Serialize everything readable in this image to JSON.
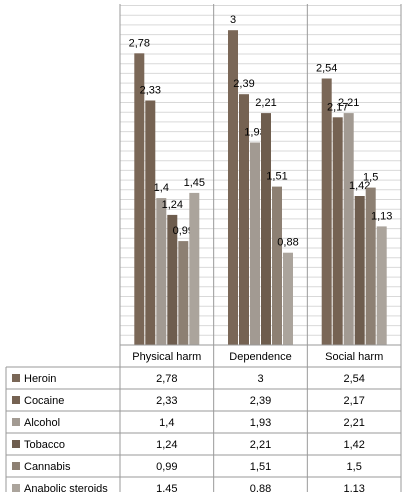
{
  "chart_data": {
    "type": "bar",
    "categories": [
      "Physical harm",
      "Dependence",
      "Social harm"
    ],
    "series": [
      {
        "name": "Heroin",
        "values": [
          2.78,
          3,
          2.54
        ],
        "labels": [
          "2,78",
          "3",
          "2,54"
        ],
        "color": "#7a6757"
      },
      {
        "name": "Cocaine",
        "values": [
          2.33,
          2.39,
          2.17
        ],
        "labels": [
          "2,33",
          "2,39",
          "2,17"
        ],
        "color": "#756252"
      },
      {
        "name": "Alcohol",
        "values": [
          1.4,
          1.93,
          2.21
        ],
        "labels": [
          "1,4",
          "1,93",
          "2,21"
        ],
        "color": "#a29a92"
      },
      {
        "name": "Tobacco",
        "values": [
          1.24,
          2.21,
          1.42
        ],
        "labels": [
          "1,24",
          "2,21",
          "1,42"
        ],
        "color": "#6e5d4e"
      },
      {
        "name": "Cannabis",
        "values": [
          0.99,
          1.51,
          1.5
        ],
        "labels": [
          "0,99",
          "1,51",
          "1,5"
        ],
        "color": "#8d8073"
      },
      {
        "name": "Anabolic steroids",
        "values": [
          1.45,
          0.88,
          1.13
        ],
        "labels": [
          "1,45",
          "0,88",
          "1,13"
        ],
        "color": "#aba49c"
      }
    ],
    "ylim": [
      0,
      3.25
    ],
    "grid": true,
    "legend": "data-table-below"
  }
}
